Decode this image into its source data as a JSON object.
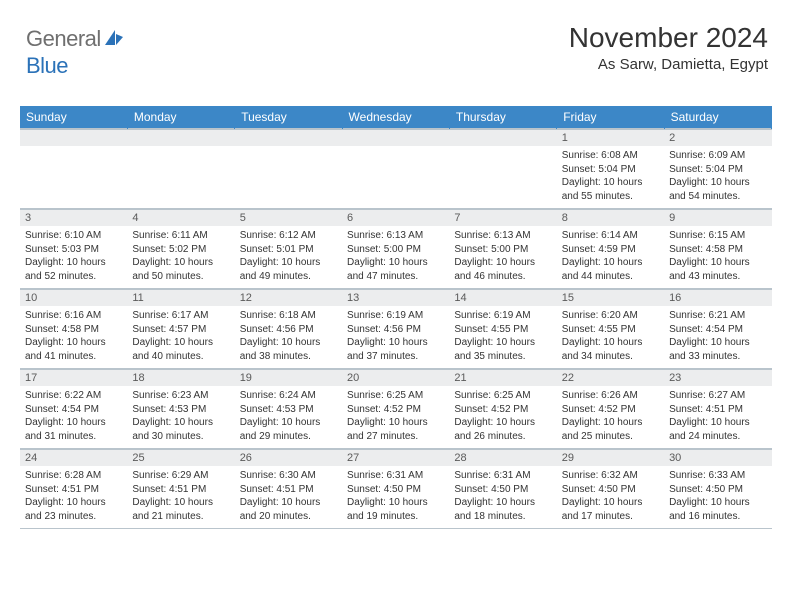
{
  "logo": {
    "text1": "General",
    "text2": "Blue"
  },
  "header": {
    "month_title": "November 2024",
    "location": "As Sarw, Damietta, Egypt"
  },
  "colors": {
    "header_bg": "#3c87c7",
    "header_text": "#ffffff",
    "daynum_bg": "#ecedee",
    "border": "#b9c4cc",
    "logo_gray": "#6f6f6f",
    "logo_blue": "#2b72b8"
  },
  "day_headers": [
    "Sunday",
    "Monday",
    "Tuesday",
    "Wednesday",
    "Thursday",
    "Friday",
    "Saturday"
  ],
  "weeks": [
    [
      {
        "n": "",
        "sunrise": "",
        "sunset": "",
        "daylight": ""
      },
      {
        "n": "",
        "sunrise": "",
        "sunset": "",
        "daylight": ""
      },
      {
        "n": "",
        "sunrise": "",
        "sunset": "",
        "daylight": ""
      },
      {
        "n": "",
        "sunrise": "",
        "sunset": "",
        "daylight": ""
      },
      {
        "n": "",
        "sunrise": "",
        "sunset": "",
        "daylight": ""
      },
      {
        "n": "1",
        "sunrise": "Sunrise: 6:08 AM",
        "sunset": "Sunset: 5:04 PM",
        "daylight": "Daylight: 10 hours and 55 minutes."
      },
      {
        "n": "2",
        "sunrise": "Sunrise: 6:09 AM",
        "sunset": "Sunset: 5:04 PM",
        "daylight": "Daylight: 10 hours and 54 minutes."
      }
    ],
    [
      {
        "n": "3",
        "sunrise": "Sunrise: 6:10 AM",
        "sunset": "Sunset: 5:03 PM",
        "daylight": "Daylight: 10 hours and 52 minutes."
      },
      {
        "n": "4",
        "sunrise": "Sunrise: 6:11 AM",
        "sunset": "Sunset: 5:02 PM",
        "daylight": "Daylight: 10 hours and 50 minutes."
      },
      {
        "n": "5",
        "sunrise": "Sunrise: 6:12 AM",
        "sunset": "Sunset: 5:01 PM",
        "daylight": "Daylight: 10 hours and 49 minutes."
      },
      {
        "n": "6",
        "sunrise": "Sunrise: 6:13 AM",
        "sunset": "Sunset: 5:00 PM",
        "daylight": "Daylight: 10 hours and 47 minutes."
      },
      {
        "n": "7",
        "sunrise": "Sunrise: 6:13 AM",
        "sunset": "Sunset: 5:00 PM",
        "daylight": "Daylight: 10 hours and 46 minutes."
      },
      {
        "n": "8",
        "sunrise": "Sunrise: 6:14 AM",
        "sunset": "Sunset: 4:59 PM",
        "daylight": "Daylight: 10 hours and 44 minutes."
      },
      {
        "n": "9",
        "sunrise": "Sunrise: 6:15 AM",
        "sunset": "Sunset: 4:58 PM",
        "daylight": "Daylight: 10 hours and 43 minutes."
      }
    ],
    [
      {
        "n": "10",
        "sunrise": "Sunrise: 6:16 AM",
        "sunset": "Sunset: 4:58 PM",
        "daylight": "Daylight: 10 hours and 41 minutes."
      },
      {
        "n": "11",
        "sunrise": "Sunrise: 6:17 AM",
        "sunset": "Sunset: 4:57 PM",
        "daylight": "Daylight: 10 hours and 40 minutes."
      },
      {
        "n": "12",
        "sunrise": "Sunrise: 6:18 AM",
        "sunset": "Sunset: 4:56 PM",
        "daylight": "Daylight: 10 hours and 38 minutes."
      },
      {
        "n": "13",
        "sunrise": "Sunrise: 6:19 AM",
        "sunset": "Sunset: 4:56 PM",
        "daylight": "Daylight: 10 hours and 37 minutes."
      },
      {
        "n": "14",
        "sunrise": "Sunrise: 6:19 AM",
        "sunset": "Sunset: 4:55 PM",
        "daylight": "Daylight: 10 hours and 35 minutes."
      },
      {
        "n": "15",
        "sunrise": "Sunrise: 6:20 AM",
        "sunset": "Sunset: 4:55 PM",
        "daylight": "Daylight: 10 hours and 34 minutes."
      },
      {
        "n": "16",
        "sunrise": "Sunrise: 6:21 AM",
        "sunset": "Sunset: 4:54 PM",
        "daylight": "Daylight: 10 hours and 33 minutes."
      }
    ],
    [
      {
        "n": "17",
        "sunrise": "Sunrise: 6:22 AM",
        "sunset": "Sunset: 4:54 PM",
        "daylight": "Daylight: 10 hours and 31 minutes."
      },
      {
        "n": "18",
        "sunrise": "Sunrise: 6:23 AM",
        "sunset": "Sunset: 4:53 PM",
        "daylight": "Daylight: 10 hours and 30 minutes."
      },
      {
        "n": "19",
        "sunrise": "Sunrise: 6:24 AM",
        "sunset": "Sunset: 4:53 PM",
        "daylight": "Daylight: 10 hours and 29 minutes."
      },
      {
        "n": "20",
        "sunrise": "Sunrise: 6:25 AM",
        "sunset": "Sunset: 4:52 PM",
        "daylight": "Daylight: 10 hours and 27 minutes."
      },
      {
        "n": "21",
        "sunrise": "Sunrise: 6:25 AM",
        "sunset": "Sunset: 4:52 PM",
        "daylight": "Daylight: 10 hours and 26 minutes."
      },
      {
        "n": "22",
        "sunrise": "Sunrise: 6:26 AM",
        "sunset": "Sunset: 4:52 PM",
        "daylight": "Daylight: 10 hours and 25 minutes."
      },
      {
        "n": "23",
        "sunrise": "Sunrise: 6:27 AM",
        "sunset": "Sunset: 4:51 PM",
        "daylight": "Daylight: 10 hours and 24 minutes."
      }
    ],
    [
      {
        "n": "24",
        "sunrise": "Sunrise: 6:28 AM",
        "sunset": "Sunset: 4:51 PM",
        "daylight": "Daylight: 10 hours and 23 minutes."
      },
      {
        "n": "25",
        "sunrise": "Sunrise: 6:29 AM",
        "sunset": "Sunset: 4:51 PM",
        "daylight": "Daylight: 10 hours and 21 minutes."
      },
      {
        "n": "26",
        "sunrise": "Sunrise: 6:30 AM",
        "sunset": "Sunset: 4:51 PM",
        "daylight": "Daylight: 10 hours and 20 minutes."
      },
      {
        "n": "27",
        "sunrise": "Sunrise: 6:31 AM",
        "sunset": "Sunset: 4:50 PM",
        "daylight": "Daylight: 10 hours and 19 minutes."
      },
      {
        "n": "28",
        "sunrise": "Sunrise: 6:31 AM",
        "sunset": "Sunset: 4:50 PM",
        "daylight": "Daylight: 10 hours and 18 minutes."
      },
      {
        "n": "29",
        "sunrise": "Sunrise: 6:32 AM",
        "sunset": "Sunset: 4:50 PM",
        "daylight": "Daylight: 10 hours and 17 minutes."
      },
      {
        "n": "30",
        "sunrise": "Sunrise: 6:33 AM",
        "sunset": "Sunset: 4:50 PM",
        "daylight": "Daylight: 10 hours and 16 minutes."
      }
    ]
  ]
}
